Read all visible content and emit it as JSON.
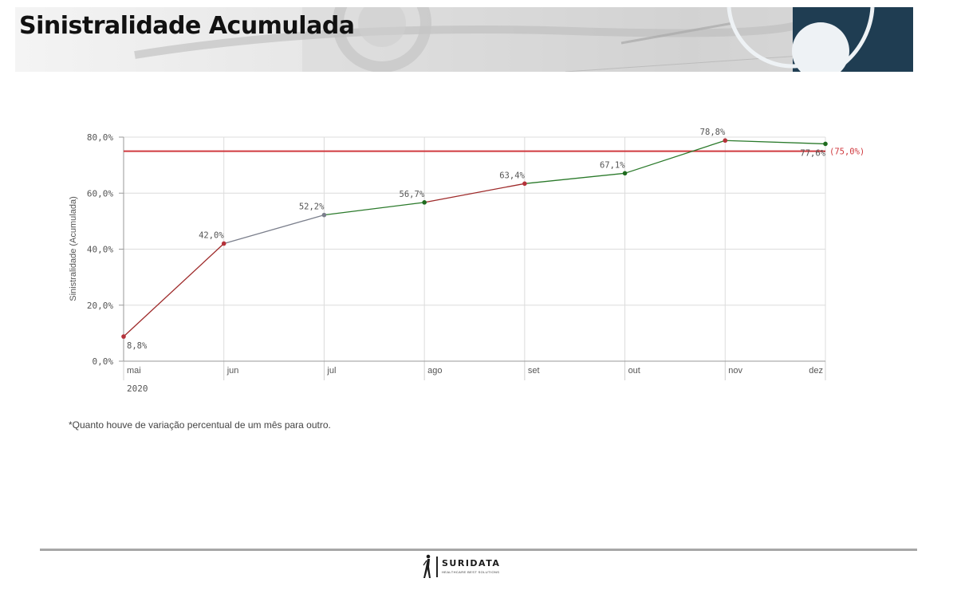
{
  "header": {
    "title": "Sinistralidade Acumulada"
  },
  "chart_data": {
    "type": "line",
    "categories": [
      "mai",
      "jun",
      "jul",
      "ago",
      "set",
      "out",
      "nov",
      "dez"
    ],
    "year_label": "2020",
    "values": [
      8.8,
      42.0,
      52.2,
      56.7,
      63.4,
      67.1,
      78.8,
      77.6
    ],
    "value_labels": [
      "8,8%",
      "42,0%",
      "52,2%",
      "56,7%",
      "63,4%",
      "67,1%",
      "78,8%",
      "77,6%"
    ],
    "point_colors": [
      "#b5323a",
      "#b5323a",
      "#7b7f8c",
      "#1e6b1e",
      "#b5323a",
      "#1e6b1e",
      "#b5323a",
      "#1e6b1e"
    ],
    "segment_colors": [
      "#9e2a2a",
      "#7b7f8c",
      "#2b7a2b",
      "#9e2a2a",
      "#2b7a2b",
      "#2b7a2b",
      "#2b7a2b"
    ],
    "ylabel": "Sinistralidade (Acumulada)",
    "ylim": [
      0,
      80
    ],
    "yticks": [
      0,
      20,
      40,
      60,
      80
    ],
    "ytick_labels": [
      "0,0%",
      "20,0%",
      "40,0%",
      "60,0%",
      "80,0%"
    ],
    "reference_line": {
      "value": 75.0,
      "label": "(75,0%)",
      "color": "#d03a3f"
    },
    "grid": true
  },
  "footnote": "*Quanto houve de variação percentual de um mês para outro.",
  "logo": {
    "name": "SURIDATA",
    "tagline": "HEALTHCARE BEST SOLUTIONS"
  }
}
